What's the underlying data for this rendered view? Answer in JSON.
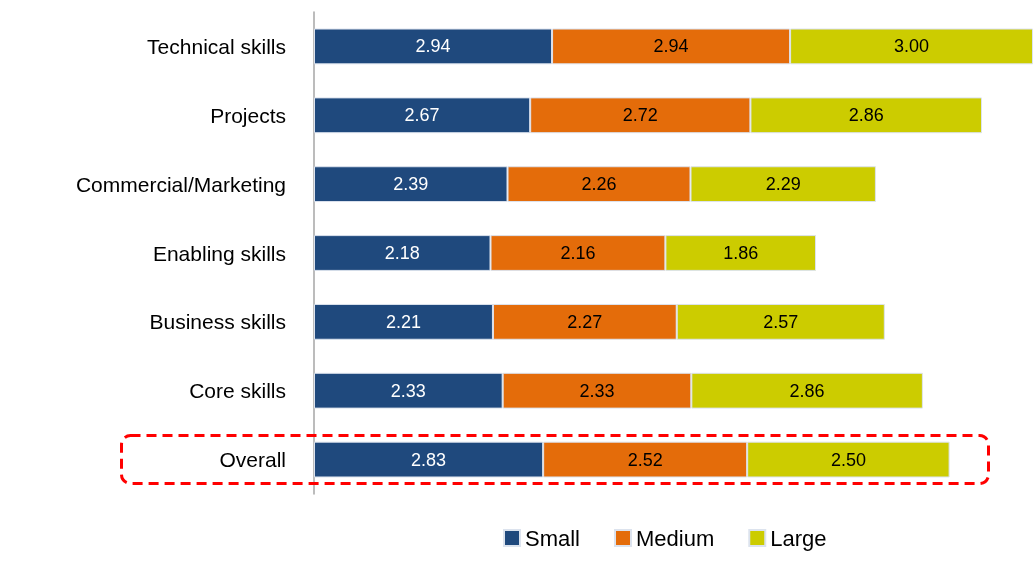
{
  "chart_data": {
    "type": "bar",
    "orientation": "horizontal",
    "stacked": true,
    "categories": [
      "Technical skills",
      "Projects",
      "Commercial/Marketing",
      "Enabling skills",
      "Business skills",
      "Core skills",
      "Overall"
    ],
    "series": [
      {
        "name": "Small",
        "color": "#1f497d",
        "values": [
          2.94,
          2.67,
          2.39,
          2.18,
          2.21,
          2.33,
          2.83
        ],
        "value_labels": [
          "2.94",
          "2.67",
          "2.39",
          "2.18",
          "2.21",
          "2.33",
          "2.83"
        ]
      },
      {
        "name": "Medium",
        "color": "#e46c0a",
        "values": [
          2.94,
          2.72,
          2.26,
          2.16,
          2.27,
          2.33,
          2.52
        ],
        "value_labels": [
          "2.94",
          "2.72",
          "2.26",
          "2.16",
          "2.27",
          "2.33",
          "2.52"
        ]
      },
      {
        "name": "Large",
        "color": "#cccc00",
        "values": [
          3.0,
          2.86,
          2.29,
          1.86,
          2.57,
          2.86,
          2.5
        ],
        "value_labels": [
          "3.00",
          "2.86",
          "2.29",
          "1.86",
          "2.57",
          "2.86",
          "2.50"
        ]
      }
    ],
    "legend": "bottom",
    "tick_labels": "y"
  }
}
